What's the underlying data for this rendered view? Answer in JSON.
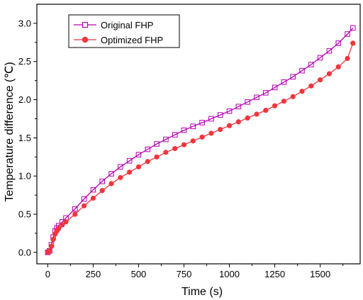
{
  "chart_data": {
    "type": "scatter",
    "title": "",
    "xlabel": "Time (s)",
    "ylabel": "Temperature difference (℃)",
    "xlim": [
      -60,
      1720
    ],
    "ylim": [
      -0.15,
      3.25
    ],
    "xticks": [
      0,
      250,
      500,
      750,
      1000,
      1250,
      1500
    ],
    "xtick_labels": [
      "0",
      "250",
      "500",
      "750",
      "1000",
      "1250",
      "1500"
    ],
    "yticks": [
      0.0,
      0.5,
      1.0,
      1.5,
      2.0,
      2.5,
      3.0
    ],
    "ytick_labels": [
      "0.0",
      "0.5",
      "1.0",
      "1.5",
      "2.0",
      "2.5",
      "3.0"
    ],
    "legend_position": "top-left",
    "grid": false,
    "series": [
      {
        "name": "Original FHP",
        "color": "#b400b4",
        "marker": "open-square",
        "x": [
          0,
          10,
          20,
          30,
          40,
          50,
          60,
          80,
          100,
          150,
          200,
          250,
          300,
          350,
          400,
          450,
          500,
          550,
          600,
          650,
          700,
          750,
          800,
          850,
          900,
          950,
          1000,
          1050,
          1100,
          1150,
          1200,
          1250,
          1300,
          1350,
          1400,
          1450,
          1500,
          1550,
          1600,
          1650,
          1680
        ],
        "y": [
          0.0,
          0.02,
          0.1,
          0.2,
          0.28,
          0.32,
          0.35,
          0.4,
          0.45,
          0.57,
          0.7,
          0.82,
          0.93,
          1.03,
          1.12,
          1.2,
          1.28,
          1.35,
          1.42,
          1.48,
          1.54,
          1.6,
          1.65,
          1.7,
          1.75,
          1.8,
          1.85,
          1.91,
          1.97,
          2.03,
          2.09,
          2.16,
          2.23,
          2.3,
          2.38,
          2.46,
          2.55,
          2.64,
          2.74,
          2.86,
          2.94
        ]
      },
      {
        "name": "Optimized FHP",
        "color": "#f0353d",
        "marker": "filled-circle",
        "x": [
          0,
          10,
          20,
          30,
          40,
          50,
          60,
          80,
          100,
          150,
          200,
          250,
          300,
          350,
          400,
          450,
          500,
          550,
          600,
          650,
          700,
          750,
          800,
          850,
          900,
          950,
          1000,
          1050,
          1100,
          1150,
          1200,
          1250,
          1300,
          1350,
          1400,
          1450,
          1500,
          1550,
          1600,
          1650,
          1680
        ],
        "y": [
          0.0,
          0.02,
          0.08,
          0.17,
          0.24,
          0.28,
          0.31,
          0.36,
          0.4,
          0.5,
          0.61,
          0.71,
          0.81,
          0.9,
          0.98,
          1.05,
          1.12,
          1.19,
          1.25,
          1.31,
          1.36,
          1.41,
          1.46,
          1.51,
          1.56,
          1.61,
          1.66,
          1.71,
          1.76,
          1.81,
          1.86,
          1.92,
          1.98,
          2.04,
          2.11,
          2.18,
          2.26,
          2.34,
          2.43,
          2.54,
          2.74
        ]
      }
    ]
  }
}
